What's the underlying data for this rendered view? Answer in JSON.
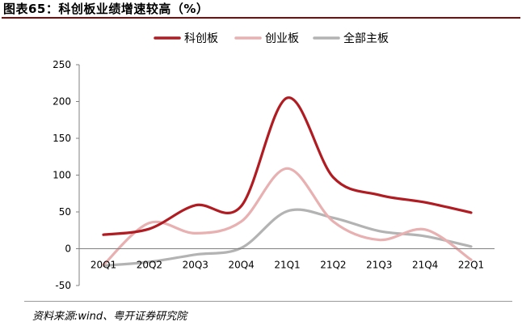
{
  "chart_data": {
    "type": "line",
    "title": "图表65：科创板业绩增速较高（%）",
    "source": "资料来源:wind、粤开证券研究院",
    "categories": [
      "20Q1",
      "20Q2",
      "20Q3",
      "20Q4",
      "21Q1",
      "21Q2",
      "21Q3",
      "21Q4",
      "22Q1"
    ],
    "ylim": [
      -50,
      250
    ],
    "yticks": [
      -50,
      0,
      50,
      100,
      150,
      200,
      250
    ],
    "legend_position": "top",
    "series": [
      {
        "name": "科创板",
        "color": "#b01c22",
        "values": [
          19,
          27,
          59,
          58,
          205,
          97,
          73,
          63,
          49
        ]
      },
      {
        "name": "创业板",
        "color": "#e8b0b0",
        "values": [
          -22,
          35,
          21,
          37,
          109,
          37,
          12,
          26,
          -15
        ]
      },
      {
        "name": "全部主板",
        "color": "#b3b3b3",
        "values": [
          -23,
          -18,
          -8,
          1,
          51,
          42,
          24,
          17,
          3
        ]
      }
    ]
  }
}
